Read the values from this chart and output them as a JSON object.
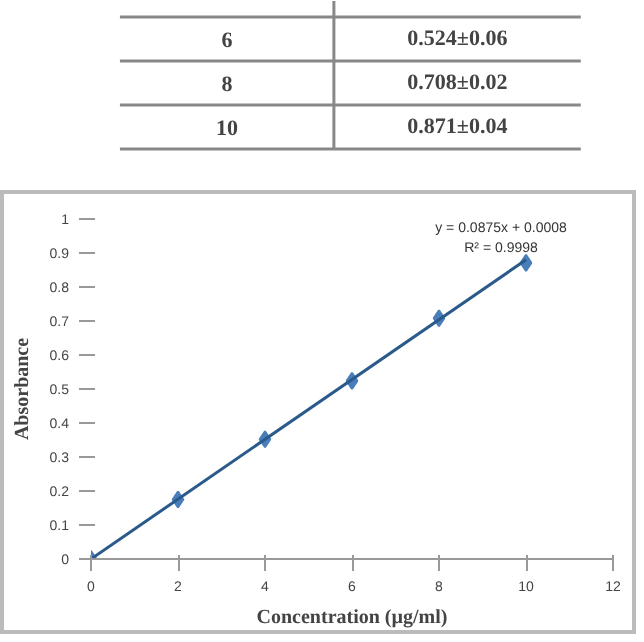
{
  "chart_data": [
    {
      "type": "other",
      "annotations": [
        "6",
        "0.524±0.06",
        "8",
        "0.708±0.02",
        "10",
        "0.871±0.04"
      ]
    },
    {
      "type": "scatter",
      "xlabel": "Concentration (µg/ml)",
      "ylabel": "Absorbance",
      "xlim": [
        0,
        12
      ],
      "ylim": [
        0,
        1
      ],
      "xticks": [
        0,
        2,
        4,
        6,
        8,
        10,
        12
      ],
      "yticks": [
        0,
        0.1,
        0.2,
        0.3,
        0.4,
        0.5,
        0.6,
        0.7,
        0.8,
        0.9,
        1
      ],
      "grid": false,
      "marker": "diamond",
      "series": [
        {
          "type": "scatter",
          "color": "#4a7ebb",
          "x": [
            0,
            2,
            4,
            6,
            8,
            10
          ],
          "values": [
            0,
            0.175,
            0.352,
            0.524,
            0.708,
            0.871
          ]
        },
        {
          "type": "line",
          "color": "#2a5a8a",
          "x": [
            0,
            10
          ],
          "values": [
            0,
            0.88
          ],
          "line_style": "solid",
          "marker": "none"
        }
      ],
      "annotations": [
        "y = 0.0875x + 0.0008",
        "R² = 0.9998"
      ]
    }
  ]
}
